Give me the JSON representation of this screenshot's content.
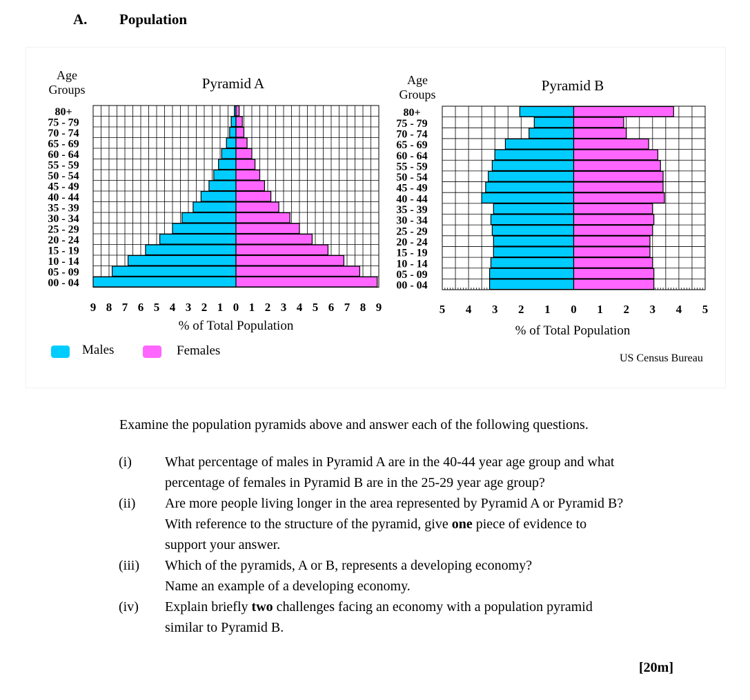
{
  "section": {
    "letter": "A.",
    "title": "Population"
  },
  "age_axis_title": [
    "Age",
    "Groups"
  ],
  "xaxis_title": "% of Total Population",
  "age_groups": [
    "80+",
    "75 - 79",
    "70 - 74",
    "65 - 69",
    "60 - 64",
    "55 - 59",
    "50 - 54",
    "45 - 49",
    "40 - 44",
    "35 - 39",
    "30 - 34",
    "25 - 29",
    "20 - 24",
    "15 - 19",
    "10 - 14",
    "05 - 09",
    "00 - 04"
  ],
  "legend": {
    "males": "Males",
    "females": "Females"
  },
  "colors": {
    "males": "#00ccff",
    "females": "#ff66ff",
    "grid": "#000000"
  },
  "source": "US Census Bureau",
  "chart_data": [
    {
      "type": "bar",
      "title": "Pyramid A",
      "xlabel": "% of Total Population",
      "ylabel": "Age Groups",
      "xlim": [
        -9,
        9
      ],
      "tick_labels": [
        "9",
        "8",
        "7",
        "6",
        "5",
        "4",
        "3",
        "2",
        "1",
        "0",
        "1",
        "2",
        "3",
        "4",
        "5",
        "6",
        "7",
        "8",
        "9"
      ],
      "categories": [
        "80+",
        "75 - 79",
        "70 - 74",
        "65 - 69",
        "60 - 64",
        "55 - 59",
        "50 - 54",
        "45 - 49",
        "40 - 44",
        "35 - 39",
        "30 - 34",
        "25 - 29",
        "20 - 24",
        "15 - 19",
        "10 - 14",
        "05 - 09",
        "00 - 04"
      ],
      "series": [
        {
          "name": "Males",
          "values": [
            0.1,
            0.3,
            0.4,
            0.6,
            0.9,
            1.1,
            1.4,
            1.7,
            2.2,
            2.7,
            3.4,
            4.0,
            4.8,
            5.7,
            6.8,
            7.8,
            9.0
          ]
        },
        {
          "name": "Females",
          "values": [
            0.2,
            0.4,
            0.5,
            0.7,
            1.0,
            1.2,
            1.5,
            1.8,
            2.2,
            2.7,
            3.4,
            4.0,
            4.8,
            5.8,
            6.8,
            7.8,
            8.9
          ]
        }
      ]
    },
    {
      "type": "bar",
      "title": "Pyramid B",
      "xlabel": "% of Total Population",
      "ylabel": "Age Groups",
      "xlim": [
        -5,
        5
      ],
      "tick_labels": [
        "5",
        "4",
        "3",
        "2",
        "1",
        "0",
        "1",
        "2",
        "3",
        "4",
        "5"
      ],
      "categories": [
        "80+",
        "75 - 79",
        "70 - 74",
        "65 - 69",
        "60 - 64",
        "55 - 59",
        "50 - 54",
        "45 - 49",
        "40 - 44",
        "35 - 39",
        "30 - 34",
        "25 - 29",
        "20 - 24",
        "15 - 19",
        "10 - 14",
        "05 - 09",
        "00 - 04"
      ],
      "series": [
        {
          "name": "Males",
          "values": [
            2.05,
            1.5,
            1.7,
            2.6,
            3.0,
            3.1,
            3.25,
            3.35,
            3.5,
            3.05,
            3.15,
            3.1,
            3.05,
            3.05,
            3.15,
            3.2,
            3.2
          ]
        },
        {
          "name": "Females",
          "values": [
            3.8,
            1.9,
            2.0,
            2.85,
            3.2,
            3.3,
            3.4,
            3.4,
            3.45,
            3.0,
            3.05,
            3.0,
            2.9,
            2.9,
            3.0,
            3.05,
            3.05
          ]
        }
      ]
    }
  ],
  "intro": "Examine the population pyramids above and answer each of the following questions.",
  "questions": [
    {
      "num": "(i)",
      "lines": [
        "What percentage of males in Pyramid A are in the 40-44 year age group and what",
        "percentage of females in Pyramid B are in the 25-29 year age group?"
      ]
    },
    {
      "num": "(ii)",
      "lines": [
        "Are more people living longer in the area represented by Pyramid A or Pyramid B?"
      ],
      "line2_pre": "With reference to the structure of the pyramid, give ",
      "line2_bold": "one",
      "line2_post": " piece of evidence to",
      "line3": "support your answer."
    },
    {
      "num": "(iii)",
      "lines": [
        "Which of the pyramids, A or B, represents a developing economy?",
        "Name an example of a developing economy."
      ]
    },
    {
      "num": "(iv)",
      "line1_pre": "Explain briefly ",
      "line1_bold": "two",
      "line1_post": " challenges facing an economy with a population pyramid",
      "line2": "similar to Pyramid B."
    }
  ],
  "marks": "[20m]"
}
